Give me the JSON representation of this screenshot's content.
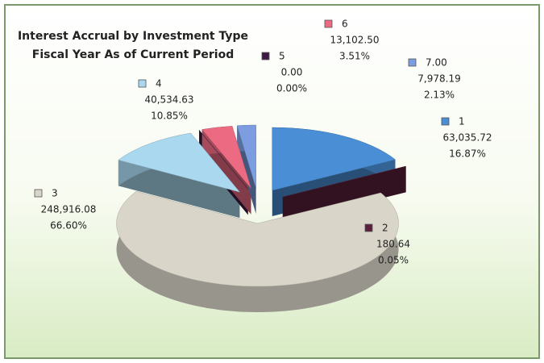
{
  "chart_data": {
    "type": "pie",
    "title": [
      "Interest Accrual by Investment Type",
      "Fiscal Year As of Current Period"
    ],
    "categories": [
      "1",
      "2",
      "3",
      "4",
      "5",
      "6",
      "7.00"
    ],
    "values": [
      63035.72,
      180.64,
      248916.08,
      40534.63,
      0.0,
      13102.5,
      7978.19
    ],
    "value_labels": [
      "63,035.72",
      "180.64",
      "248,916.08",
      "40,534.63",
      "0.00",
      "13,102.50",
      "7,978.19"
    ],
    "percent_labels": [
      "16.87%",
      "0.05%",
      "66.60%",
      "10.85%",
      "0.00%",
      "3.51%",
      "2.13%"
    ],
    "colors": [
      "#4a8fd6",
      "#5a1f3a",
      "#d9d5c9",
      "#a9d8ef",
      "#3d1a44",
      "#ec6b82",
      "#7c9ee0"
    ]
  }
}
